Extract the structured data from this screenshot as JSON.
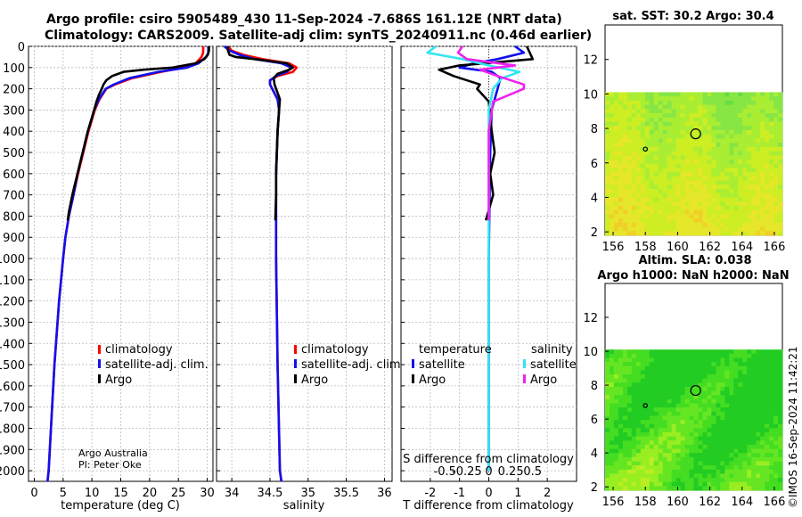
{
  "header": {
    "title_line1": "Argo profile: csiro 5905489_430 11-Sep-2024 -7.686S 161.12E (NRT data)",
    "title_line2": "Climatology: CARS2009. Satellite-adj clim: synTS_20240911.nc (0.46d earlier)"
  },
  "credits": {
    "line1": "Argo Australia",
    "line2": "PI: Peter Oke"
  },
  "timestamp": "©IMOS 16-Sep-2024 11:42:21",
  "colors": {
    "climatology": "#ff0000",
    "satellite": "#1010ee",
    "argo": "#000000",
    "sal_satellite": "#33e5f0",
    "sal_argo": "#ee22ee"
  },
  "chart_data": [
    {
      "type": "line",
      "name": "temperature",
      "xlabel": "temperature (deg C)",
      "xlim": [
        -1,
        31
      ],
      "ylim": [
        2050,
        0
      ],
      "xticks": [
        0,
        5,
        10,
        15,
        20,
        25,
        30
      ],
      "yticks": [
        0,
        100,
        200,
        300,
        400,
        500,
        600,
        700,
        800,
        900,
        1000,
        1100,
        1200,
        1300,
        1400,
        1500,
        1600,
        1700,
        1800,
        1900,
        2000
      ],
      "legend": [
        "climatology",
        "satellite-adj. clim.",
        "Argo"
      ],
      "series": [
        {
          "name": "climatology",
          "depth": [
            0,
            30,
            50,
            80,
            100,
            120,
            150,
            180,
            200,
            250,
            300,
            400,
            500,
            600,
            700,
            800,
            900,
            1000,
            1200,
            1500,
            1800,
            2000,
            2050
          ],
          "values": [
            29.3,
            29.3,
            29.0,
            28.0,
            26.0,
            22.0,
            17.0,
            14.0,
            12.5,
            11.3,
            10.5,
            9.4,
            8.5,
            7.6,
            6.8,
            6.0,
            5.4,
            5.0,
            4.3,
            3.5,
            2.9,
            2.5,
            2.3
          ]
        },
        {
          "name": "satellite-adj. clim.",
          "depth": [
            0,
            30,
            50,
            80,
            100,
            120,
            150,
            180,
            200,
            250,
            300,
            400,
            500,
            600,
            700,
            800,
            900,
            1000,
            1200,
            1500,
            1800,
            2000,
            2050
          ],
          "values": [
            30.2,
            30.2,
            29.8,
            28.5,
            26.5,
            21.5,
            16.5,
            13.8,
            12.4,
            11.2,
            10.4,
            9.3,
            8.4,
            7.5,
            6.8,
            6.0,
            5.4,
            5.0,
            4.3,
            3.5,
            2.9,
            2.5,
            2.3
          ]
        },
        {
          "name": "Argo",
          "depth": [
            0,
            20,
            40,
            60,
            80,
            100,
            110,
            120,
            140,
            160,
            180,
            200,
            230,
            260,
            300,
            400,
            500,
            600,
            700,
            780,
            820
          ],
          "values": [
            30.3,
            30.3,
            30.1,
            29.5,
            28.0,
            24.0,
            19.0,
            15.5,
            13.5,
            12.5,
            12.0,
            11.7,
            11.2,
            10.8,
            10.4,
            9.3,
            8.4,
            7.5,
            6.6,
            6.0,
            5.8
          ]
        }
      ]
    },
    {
      "type": "line",
      "name": "salinity",
      "xlabel": "salinity",
      "xlim": [
        33.8,
        36.1
      ],
      "ylim": [
        2050,
        0
      ],
      "xticks": [
        34,
        34.5,
        35,
        35.5,
        36
      ],
      "legend": [
        "climatology",
        "satellite-adj. clim.",
        "Argo"
      ],
      "series": [
        {
          "name": "climatology",
          "depth": [
            0,
            20,
            40,
            60,
            80,
            100,
            120,
            140,
            160,
            180,
            200,
            250,
            300,
            400,
            600,
            800,
            1000,
            1500,
            2000,
            2050
          ],
          "values": [
            33.95,
            34.0,
            34.15,
            34.4,
            34.75,
            34.85,
            34.8,
            34.6,
            34.5,
            34.5,
            34.53,
            34.6,
            34.62,
            34.6,
            34.58,
            34.58,
            34.58,
            34.6,
            34.63,
            34.65
          ]
        },
        {
          "name": "satellite-adj. clim.",
          "depth": [
            0,
            20,
            40,
            60,
            80,
            100,
            120,
            140,
            160,
            180,
            200,
            250,
            300,
            400,
            600,
            800,
            1000,
            1500,
            2000,
            2050
          ],
          "values": [
            33.9,
            33.97,
            34.1,
            34.3,
            34.65,
            34.78,
            34.72,
            34.58,
            34.5,
            34.5,
            34.53,
            34.6,
            34.62,
            34.6,
            34.58,
            34.58,
            34.58,
            34.6,
            34.63,
            34.65
          ]
        },
        {
          "name": "Argo",
          "depth": [
            0,
            20,
            40,
            50,
            60,
            80,
            100,
            110,
            130,
            150,
            180,
            200,
            250,
            300,
            400,
            500,
            600,
            700,
            820
          ],
          "values": [
            33.95,
            33.95,
            33.97,
            34.05,
            34.3,
            34.72,
            34.8,
            34.75,
            34.6,
            34.55,
            34.56,
            34.58,
            34.63,
            34.62,
            34.6,
            34.59,
            34.58,
            34.58,
            34.57
          ]
        }
      ]
    },
    {
      "type": "line",
      "name": "differences",
      "xlabel": "T difference from climatology",
      "xlabel_top": "S difference from climatology",
      "xlim": [
        -3,
        3
      ],
      "ylim": [
        2050,
        0
      ],
      "xticks": [
        -2,
        -1,
        0,
        1,
        2
      ],
      "xticks_salinity": [
        "-0.5",
        "-0.25",
        "0",
        "0.25",
        "0.5"
      ],
      "legend_temperature_title": "temperature",
      "legend_salinity_title": "salinity",
      "legend": [
        "satellite",
        "Argo",
        "satellite",
        "Argo"
      ],
      "series": [
        {
          "name": "temperature satellite",
          "depth": [
            0,
            30,
            60,
            80,
            100,
            120,
            150,
            200,
            300,
            500,
            1000,
            2000
          ],
          "values": [
            0.9,
            1.2,
            0.3,
            -0.5,
            -1.0,
            0.1,
            0.4,
            0.3,
            0.1,
            0.05,
            0.0,
            0.0
          ]
        },
        {
          "name": "temperature Argo",
          "depth": [
            0,
            30,
            60,
            90,
            110,
            140,
            180,
            200,
            260,
            400,
            500,
            600,
            700,
            820
          ],
          "values": [
            1.3,
            1.4,
            1.5,
            -1.0,
            -1.7,
            -1.2,
            -0.3,
            -0.4,
            0.0,
            0.1,
            0.2,
            0.05,
            0.15,
            -0.1
          ]
        },
        {
          "name": "salinity satellite",
          "depth": [
            0,
            30,
            60,
            90,
            120,
            150,
            200,
            300,
            500,
            1000,
            2000
          ],
          "values": [
            -0.6,
            -0.7,
            -0.3,
            0.0,
            0.35,
            0.15,
            0.05,
            0.0,
            0.0,
            0.0,
            0.0
          ]
        },
        {
          "name": "salinity Argo",
          "depth": [
            0,
            30,
            60,
            90,
            110,
            140,
            180,
            200,
            260,
            400,
            600,
            820
          ],
          "values": [
            -0.3,
            -0.35,
            -0.25,
            0.3,
            -0.1,
            0.1,
            0.4,
            0.4,
            0.05,
            0.0,
            0.0,
            0.0
          ]
        }
      ]
    },
    {
      "type": "heatmap",
      "name": "satellite SST map",
      "title": "sat. SST: 30.2 Argo: 30.4",
      "xlim": [
        155.5,
        166.5
      ],
      "ylim": [
        1.8,
        14
      ],
      "xticks": [
        156,
        158,
        160,
        162,
        164,
        166
      ],
      "yticks": [
        2,
        4,
        6,
        8,
        10,
        12
      ],
      "data_ylim": [
        1.8,
        10.1
      ],
      "argo_position": {
        "lon": 161.12,
        "lat": 7.686
      },
      "palette": [
        "#66dd44",
        "#88e644",
        "#aaee33",
        "#ccee22",
        "#e6e62a",
        "#f0d028"
      ]
    },
    {
      "type": "heatmap",
      "name": "altimetry SLA map",
      "title": "Altim. SLA: 0.038",
      "subtitle": "Argo h1000: NaN h2000: NaN",
      "xlim": [
        155.5,
        166.5
      ],
      "ylim": [
        1.8,
        14
      ],
      "xticks": [
        156,
        158,
        160,
        162,
        164,
        166
      ],
      "yticks": [
        2,
        4,
        6,
        8,
        10,
        12
      ],
      "data_ylim": [
        1.8,
        10.1
      ],
      "argo_position": {
        "lon": 161.12,
        "lat": 7.686
      },
      "palette": [
        "#22cc22",
        "#44dd22",
        "#66e622",
        "#99ee22",
        "#bbee22",
        "#d8f020"
      ]
    }
  ]
}
